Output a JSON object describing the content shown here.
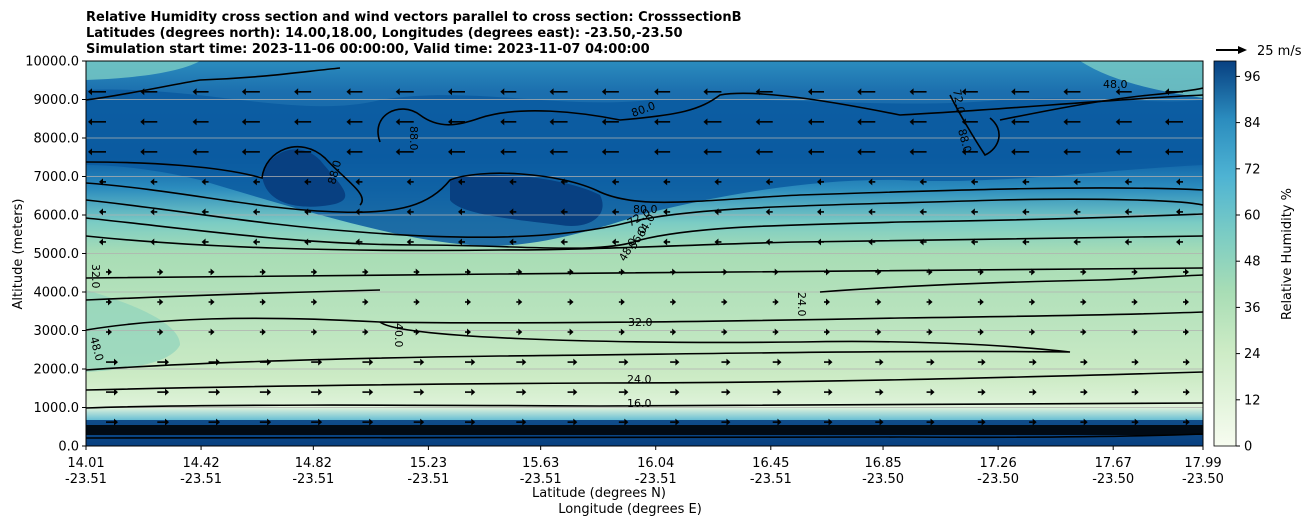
{
  "chart_data": {
    "type": "contour",
    "title_lines": [
      "Relative Humidity cross section and wind vectors parallel to cross section: CrosssectionB",
      "Latitudes (degrees north): 14.00,18.00, Longitudes (degrees east): -23.50,-23.50",
      "Simulation start time: 2023-11-06 00:00:00, Valid time: 2023-11-07 04:00:00"
    ],
    "ylabel": "Altitude (meters)",
    "xlabel_lines": [
      "Latitude (degrees N)",
      "Longitude (degrees E)"
    ],
    "ylim": [
      0,
      10000
    ],
    "y_ticks": [
      0,
      1000,
      2000,
      3000,
      4000,
      5000,
      6000,
      7000,
      8000,
      9000,
      10000
    ],
    "y_tick_labels": [
      "0.0",
      "1000.0",
      "2000.0",
      "3000.0",
      "4000.0",
      "5000.0",
      "6000.0",
      "7000.0",
      "8000.0",
      "9000.0",
      "10000.0"
    ],
    "xlim": [
      14.01,
      17.99
    ],
    "x_ticks": [
      {
        "lat": "14.01",
        "lon": "-23.51"
      },
      {
        "lat": "14.42",
        "lon": "-23.51"
      },
      {
        "lat": "14.82",
        "lon": "-23.51"
      },
      {
        "lat": "15.23",
        "lon": "-23.51"
      },
      {
        "lat": "15.63",
        "lon": "-23.51"
      },
      {
        "lat": "16.04",
        "lon": "-23.51"
      },
      {
        "lat": "16.45",
        "lon": "-23.51"
      },
      {
        "lat": "16.85",
        "lon": "-23.50"
      },
      {
        "lat": "17.26",
        "lon": "-23.50"
      },
      {
        "lat": "17.67",
        "lon": "-23.50"
      },
      {
        "lat": "17.99",
        "lon": "-23.50"
      }
    ],
    "grid": "horizontal",
    "colorbar": {
      "label": "Relative Humidity %",
      "range": [
        0,
        100
      ],
      "ticks": [
        0,
        12,
        24,
        36,
        48,
        60,
        72,
        84,
        96
      ]
    },
    "quiver_key": {
      "label": "25 m/s"
    },
    "contour_levels_labeled": [
      "16.0",
      "24.0",
      "24.0",
      "32.0",
      "32.0",
      "40.0",
      "48.0",
      "48.0",
      "56.0",
      "64.0",
      "72.0",
      "80.0",
      "88.0",
      "88.0",
      "88.0",
      "48.0",
      "72.0",
      "80.0"
    ],
    "rh_profile_approx": [
      {
        "z": 0,
        "rh": 90
      },
      {
        "z": 300,
        "rh": 95
      },
      {
        "z": 500,
        "rh": 60
      },
      {
        "z": 1000,
        "rh": 18
      },
      {
        "z": 2000,
        "rh": 25
      },
      {
        "z": 3000,
        "rh": 32
      },
      {
        "z": 4000,
        "rh": 30
      },
      {
        "z": 5000,
        "rh": 45
      },
      {
        "z": 6000,
        "rh": 72
      },
      {
        "z": 7000,
        "rh": 86
      },
      {
        "z": 8000,
        "rh": 84
      },
      {
        "z": 9000,
        "rh": 80
      },
      {
        "z": 10000,
        "rh": 70
      }
    ]
  }
}
